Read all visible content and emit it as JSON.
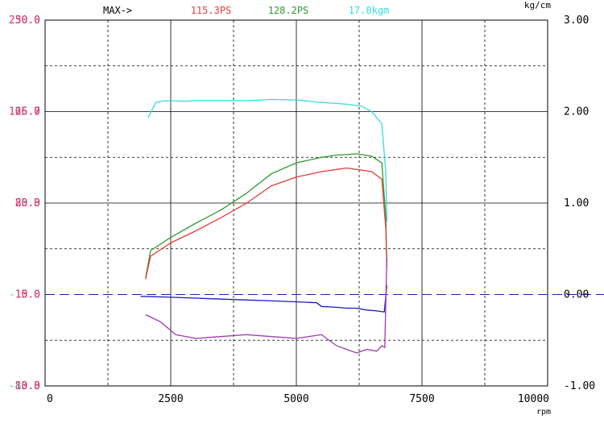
{
  "chart_data": {
    "type": "line",
    "header": {
      "max_label": "MAX->",
      "max_values": [
        {
          "text": "115.3PS",
          "color": "#e83c3c"
        },
        {
          "text": "128.2PS",
          "color": "#2e9a2e"
        },
        {
          "text": "17.0kgm",
          "color": "#33dddd"
        }
      ]
    },
    "x_axis": {
      "unit": "rpm",
      "range": [
        0,
        10000
      ],
      "ticks": [
        "0",
        "2500",
        "5000",
        "7500",
        "10000"
      ],
      "tick_values": [
        0,
        2500,
        5000,
        7500,
        10000
      ]
    },
    "right_axis": {
      "unit": "kg/cm",
      "range": [
        -1.0,
        3.0
      ],
      "ticks": [
        "3.00",
        "2.00",
        "1.00",
        "0.00",
        "-1.00"
      ],
      "tick_values": [
        3.0,
        2.0,
        1.0,
        0.0,
        -1.0
      ],
      "color": "#000000"
    },
    "left_axes": [
      {
        "name": "power",
        "color": "#e0306a",
        "range": [
          -83.3,
          250.0
        ],
        "labels": [
          "250.0",
          "166.7",
          "83.3",
          "0.0",
          "-83.3"
        ],
        "label_values": [
          250.0,
          166.7,
          83.3,
          0.0,
          -83.3
        ]
      },
      {
        "name": "torque",
        "color": "#33dddd",
        "range": [
          -30.0,
          30.0
        ],
        "labels": [
          "30.0",
          "15.0",
          "0.0",
          "-15.0",
          "-30.0"
        ],
        "label_values": [
          30.0,
          15.0,
          0.0,
          -15.0,
          -30.0
        ]
      },
      {
        "name": "afr",
        "color": "#e0306a",
        "range": [
          10.0,
          30.0
        ],
        "labels": [
          "30.0",
          "25.0",
          "20.0",
          "15.0",
          "10.0"
        ],
        "label_values": [
          30.0,
          25.0,
          20.0,
          15.0,
          10.0
        ]
      }
    ],
    "grid": true,
    "series": [
      {
        "color": "#33dddd",
        "axis": "torque",
        "x": [
          2050,
          2200,
          2400,
          2800,
          3000,
          3500,
          4000,
          4300,
          4500,
          5000,
          5500,
          6000,
          6300,
          6500,
          6700,
          6780,
          6800
        ],
        "y": [
          14.0,
          16.5,
          16.8,
          16.7,
          16.8,
          16.8,
          16.8,
          16.9,
          17.0,
          16.9,
          16.5,
          16.2,
          15.9,
          15.0,
          13.0,
          5.0,
          -3.0
        ]
      },
      {
        "color": "#2e9a2e",
        "axis": "power",
        "x": [
          2000,
          2100,
          2500,
          3000,
          3500,
          4000,
          4500,
          5000,
          5500,
          5800,
          6000,
          6200,
          6500,
          6700,
          6780,
          6800
        ],
        "y": [
          15.0,
          40.0,
          52.0,
          65.0,
          77.0,
          92.0,
          110.0,
          120.0,
          125.0,
          127.0,
          127.5,
          128.2,
          126.0,
          120.0,
          70.0,
          30.0
        ]
      },
      {
        "color": "#e83c3c",
        "axis": "power",
        "x": [
          2000,
          2100,
          2500,
          3000,
          3500,
          4000,
          4500,
          5000,
          5500,
          5800,
          6000,
          6200,
          6500,
          6700,
          6780,
          6800
        ],
        "y": [
          14.0,
          35.0,
          47.0,
          58.0,
          70.0,
          83.0,
          99.0,
          107.0,
          112.0,
          114.0,
          115.3,
          114.0,
          112.0,
          105.0,
          60.0,
          25.0
        ]
      },
      {
        "color": "#1c1cbe",
        "axis": "right",
        "x": [
          1900,
          2500,
          3000,
          3500,
          4000,
          4500,
          5000,
          5400,
          5500,
          5800,
          6000,
          6200,
          6400,
          6600,
          6750,
          6800
        ],
        "y": [
          -0.02,
          -0.03,
          -0.04,
          -0.05,
          -0.06,
          -0.07,
          -0.08,
          -0.09,
          -0.13,
          -0.14,
          -0.15,
          -0.15,
          -0.17,
          -0.18,
          -0.19,
          0.1
        ]
      },
      {
        "color": "#9b3bb0",
        "axis": "afr",
        "x": [
          2000,
          2300,
          2600,
          3000,
          3500,
          4000,
          4500,
          5000,
          5500,
          5800,
          6000,
          6200,
          6400,
          6600,
          6700,
          6760,
          6800
        ],
        "y": [
          13.9,
          13.5,
          12.8,
          12.6,
          12.7,
          12.8,
          12.7,
          12.6,
          12.8,
          12.2,
          12.0,
          11.8,
          12.0,
          11.9,
          12.2,
          12.1,
          17.0
        ]
      }
    ]
  }
}
